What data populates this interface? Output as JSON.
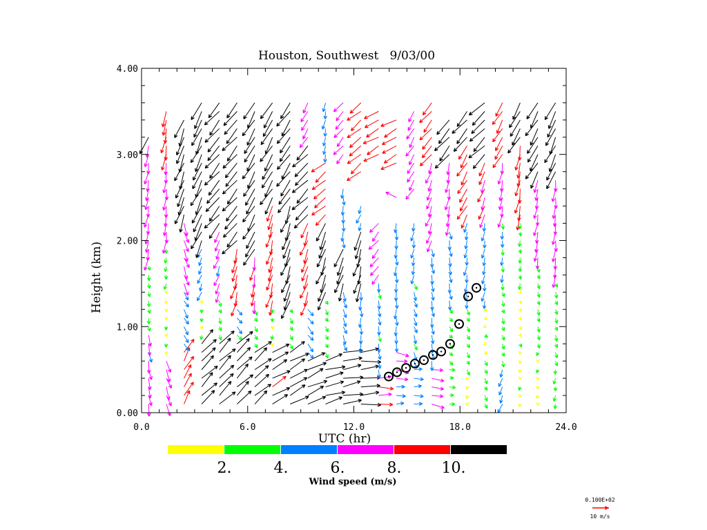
{
  "chart_data": {
    "type": "wind-profile",
    "title": "Houston, Southwest   9/03/00",
    "xlabel": "UTC (hr)",
    "ylabel": "Height (km)",
    "xlim": [
      0,
      24
    ],
    "ylim": [
      0,
      4
    ],
    "xticks": [
      {
        "v": 0,
        "label": "0.0"
      },
      {
        "v": 6,
        "label": "6.0"
      },
      {
        "v": 12,
        "label": "12.0"
      },
      {
        "v": 18,
        "label": "18.0"
      },
      {
        "v": 24,
        "label": "24.0"
      }
    ],
    "yticks": [
      {
        "v": 0,
        "label": "0.00"
      },
      {
        "v": 1,
        "label": "1.00"
      },
      {
        "v": 2,
        "label": "2.00"
      },
      {
        "v": 3,
        "label": "3.00"
      },
      {
        "v": 4,
        "label": "4.00"
      }
    ],
    "colorbar": {
      "label": "Wind speed (m/s)",
      "bins": [
        {
          "min": 0,
          "max": 2,
          "color": "#ffff00"
        },
        {
          "min": 2,
          "max": 4,
          "color": "#00ff00"
        },
        {
          "min": 4,
          "max": 6,
          "color": "#0080ff"
        },
        {
          "min": 6,
          "max": 8,
          "color": "#ff00ff"
        },
        {
          "min": 8,
          "max": 10,
          "color": "#ff0000"
        },
        {
          "min": 10,
          "max": 99,
          "color": "#000000"
        }
      ],
      "tick_labels": [
        "2.",
        "4.",
        "6.",
        "8.",
        "10."
      ]
    },
    "reference_vector": {
      "value_label": "0.100E+02",
      "unit_label": "10 m/s",
      "speed": 10,
      "color": "#ff0000"
    },
    "height_step_km": 0.1,
    "wind_columns_note": "segments: [height_start_km, height_end_km, speed_m_s, direction_from_deg]",
    "wind_columns": [
      {
        "utc": 0.4,
        "segments": [
          [
            0.1,
            1.0,
            6.5,
            350
          ],
          [
            1.0,
            1.8,
            3,
            350
          ],
          [
            1.8,
            3.2,
            7,
            10
          ],
          [
            3.2,
            3.3,
            11,
            30
          ]
        ]
      },
      {
        "utc": 1.4,
        "segments": [
          [
            0.1,
            0.7,
            7,
            340
          ],
          [
            0.7,
            1.5,
            1.5,
            0
          ],
          [
            1.5,
            2.0,
            3,
            10
          ],
          [
            2.0,
            3.0,
            7,
            5
          ],
          [
            3.0,
            3.6,
            9,
            10
          ]
        ]
      },
      {
        "utc": 2.4,
        "segments": [
          [
            0.1,
            0.8,
            9,
            210
          ],
          [
            0.8,
            1.5,
            5,
            330
          ],
          [
            1.5,
            2.3,
            7,
            340
          ],
          [
            2.3,
            3.5,
            11,
            20
          ]
        ]
      },
      {
        "utc": 3.4,
        "segments": [
          [
            0.1,
            0.9,
            11,
            225
          ],
          [
            0.9,
            1.4,
            2,
            0
          ],
          [
            1.4,
            2.0,
            5,
            20
          ],
          [
            2.0,
            3.7,
            11,
            25
          ]
        ]
      },
      {
        "utc": 4.4,
        "segments": [
          [
            0.1,
            0.9,
            11,
            225
          ],
          [
            0.9,
            1.4,
            3,
            340
          ],
          [
            1.4,
            2.2,
            6.5,
            20
          ],
          [
            2.2,
            3.7,
            11,
            40
          ]
        ]
      },
      {
        "utc": 5.4,
        "segments": [
          [
            0.1,
            0.9,
            11,
            225
          ],
          [
            0.9,
            1.3,
            4.5,
            320
          ],
          [
            1.3,
            2.0,
            9,
            15
          ],
          [
            2.0,
            3.7,
            11,
            40
          ]
        ]
      },
      {
        "utc": 6.4,
        "segments": [
          [
            0.1,
            0.8,
            11,
            230
          ],
          [
            0.8,
            1.3,
            3,
            330
          ],
          [
            1.3,
            1.9,
            8,
            10
          ],
          [
            1.9,
            3.7,
            11,
            30
          ]
        ]
      },
      {
        "utc": 7.4,
        "segments": [
          [
            0.1,
            0.8,
            10.5,
            240
          ],
          [
            0.8,
            1.3,
            2,
            0
          ],
          [
            1.3,
            2.5,
            9,
            15
          ],
          [
            2.5,
            3.7,
            11,
            30
          ]
        ]
      },
      {
        "utc": 8.4,
        "segments": [
          [
            0.1,
            0.8,
            11,
            240
          ],
          [
            0.8,
            1.3,
            3,
            330
          ],
          [
            1.3,
            2.5,
            11,
            20
          ],
          [
            2.5,
            3.7,
            11,
            35
          ]
        ]
      },
      {
        "utc": 9.4,
        "segments": [
          [
            0.1,
            0.7,
            11,
            245
          ],
          [
            0.7,
            1.3,
            5,
            320
          ],
          [
            1.3,
            2.3,
            9,
            20
          ],
          [
            2.3,
            3.2,
            11,
            45
          ],
          [
            3.2,
            3.7,
            7,
            30
          ]
        ]
      },
      {
        "utc": 10.4,
        "segments": [
          [
            0.1,
            0.7,
            11,
            255
          ],
          [
            0.7,
            1.4,
            3,
            330
          ],
          [
            1.4,
            2.3,
            11,
            20
          ],
          [
            2.3,
            3.0,
            9,
            50
          ],
          [
            3.0,
            3.7,
            5,
            10
          ]
        ]
      },
      {
        "utc": 11.4,
        "segments": [
          [
            0.1,
            0.8,
            11,
            260
          ],
          [
            0.8,
            1.5,
            5,
            340
          ],
          [
            1.5,
            2.0,
            11,
            20
          ],
          [
            2.0,
            2.7,
            5,
            0
          ],
          [
            3.0,
            3.7,
            7,
            40
          ]
        ]
      },
      {
        "utc": 12.4,
        "segments": [
          [
            0.1,
            0.8,
            11,
            265
          ],
          [
            0.8,
            1.5,
            5,
            0
          ],
          [
            1.5,
            2.2,
            11,
            15
          ],
          [
            2.2,
            2.5,
            5,
            20
          ],
          [
            2.8,
            3.7,
            9,
            50
          ]
        ]
      },
      {
        "utc": 13.4,
        "segments": [
          [
            0.1,
            0.5,
            8,
            270
          ],
          [
            0.5,
            1.6,
            4.5,
            350
          ],
          [
            1.6,
            2.3,
            7,
            40
          ],
          [
            3.0,
            3.6,
            9,
            60
          ]
        ]
      },
      {
        "utc": 14.4,
        "segments": [
          [
            0.1,
            0.4,
            5,
            270
          ],
          [
            0.4,
            0.8,
            7,
            280
          ],
          [
            0.8,
            2.3,
            5,
            0
          ],
          [
            2.5,
            2.6,
            7,
            120
          ],
          [
            2.9,
            3.5,
            9,
            60
          ]
        ]
      },
      {
        "utc": 15.4,
        "segments": [
          [
            0.1,
            0.6,
            5,
            270
          ],
          [
            0.6,
            1.6,
            4.5,
            340
          ],
          [
            1.6,
            2.3,
            5,
            10
          ],
          [
            2.6,
            3.6,
            7,
            30
          ]
        ]
      },
      {
        "utc": 16.4,
        "segments": [
          [
            0.1,
            0.6,
            7,
            280
          ],
          [
            0.6,
            2.0,
            5,
            350
          ],
          [
            2.0,
            3.0,
            7,
            20
          ],
          [
            3.0,
            3.7,
            9,
            40
          ]
        ]
      },
      {
        "utc": 17.4,
        "segments": [
          [
            0.1,
            0.6,
            3,
            270
          ],
          [
            0.6,
            1.3,
            3,
            320
          ],
          [
            1.3,
            2.2,
            5,
            350
          ],
          [
            2.2,
            3.0,
            7,
            10
          ],
          [
            3.0,
            3.5,
            11,
            40
          ]
        ]
      },
      {
        "utc": 18.4,
        "segments": [
          [
            0.1,
            0.5,
            1.5,
            0
          ],
          [
            0.5,
            1.3,
            3,
            330
          ],
          [
            1.3,
            2.3,
            5,
            10
          ],
          [
            2.3,
            3.2,
            9,
            30
          ],
          [
            3.2,
            3.6,
            11,
            40
          ]
        ]
      },
      {
        "utc": 19.4,
        "segments": [
          [
            0.1,
            0.7,
            3,
            330
          ],
          [
            0.7,
            1.3,
            1.5,
            300
          ],
          [
            1.3,
            2.3,
            5,
            10
          ],
          [
            2.3,
            3.0,
            8,
            20
          ],
          [
            3.0,
            3.7,
            11,
            45
          ]
        ]
      },
      {
        "utc": 20.4,
        "segments": [
          [
            0.1,
            0.6,
            5,
            20
          ],
          [
            0.6,
            1.5,
            3,
            340
          ],
          [
            1.5,
            2.3,
            4,
            0
          ],
          [
            2.3,
            3.0,
            7,
            10
          ],
          [
            3.0,
            3.7,
            9,
            30
          ]
        ]
      },
      {
        "utc": 21.4,
        "segments": [
          [
            0.1,
            0.8,
            1.5,
            10
          ],
          [
            0.8,
            1.5,
            1.5,
            330
          ],
          [
            1.5,
            2.3,
            3,
            0
          ],
          [
            2.3,
            3.2,
            9,
            10
          ],
          [
            3.2,
            3.7,
            11,
            30
          ]
        ]
      },
      {
        "utc": 22.4,
        "segments": [
          [
            0.1,
            0.8,
            1.5,
            10
          ],
          [
            0.8,
            1.8,
            3,
            340
          ],
          [
            1.8,
            2.8,
            7,
            10
          ],
          [
            2.8,
            3.7,
            11,
            30
          ]
        ]
      },
      {
        "utc": 23.4,
        "segments": [
          [
            0.1,
            0.6,
            3,
            10
          ],
          [
            0.6,
            1.6,
            3,
            340
          ],
          [
            1.6,
            2.8,
            7,
            5
          ],
          [
            2.8,
            3.7,
            11,
            25
          ]
        ]
      }
    ],
    "boundary_layer_markers": {
      "utc": [
        13.97,
        14.44,
        14.95,
        15.45,
        15.96,
        16.47,
        16.94,
        17.44,
        17.95,
        18.46,
        18.93
      ],
      "height_km": [
        0.42,
        0.47,
        0.52,
        0.57,
        0.61,
        0.67,
        0.71,
        0.8,
        1.03,
        1.35,
        1.45
      ]
    }
  }
}
